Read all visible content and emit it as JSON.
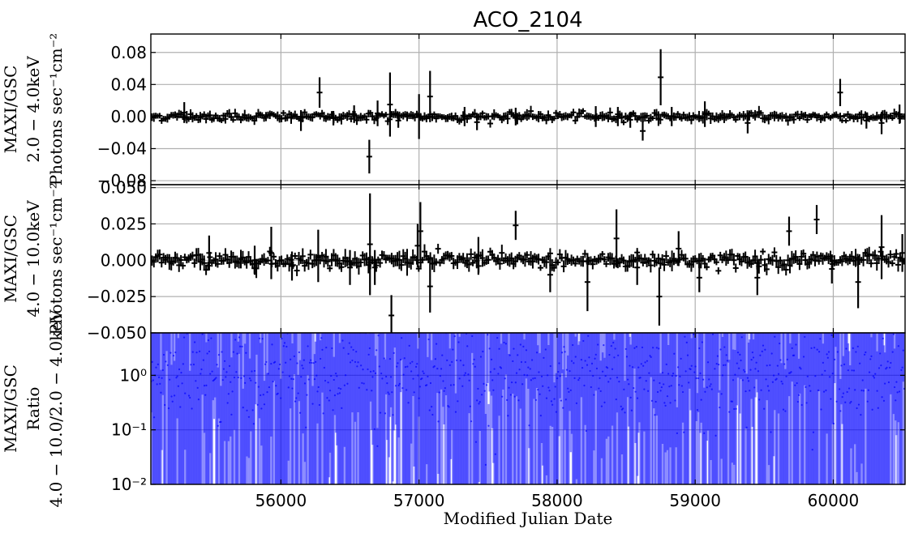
{
  "chart_data": [
    {
      "type": "scatter",
      "panel": "top",
      "title": "ACO_2104",
      "ylabel_lines": [
        "MAXI/GSC",
        "2.0 − 4.0keV",
        "Photons sec⁻¹cm⁻²"
      ],
      "xlim": [
        55058,
        60520
      ],
      "ylim": [
        -0.085,
        0.103
      ],
      "yticks": [
        0.08,
        0.04,
        0.0,
        -0.04,
        -0.08
      ],
      "ytick_labels": [
        "0.08",
        "0.04",
        "0.00",
        "−0.04",
        "−0.08"
      ],
      "grid": true,
      "color": "#000000",
      "spikes": [
        {
          "x": 55300,
          "y": 0.005,
          "err": 0.013
        },
        {
          "x": 56145,
          "y": -0.005,
          "err": 0.013
        },
        {
          "x": 56280,
          "y": 0.03,
          "err": 0.019
        },
        {
          "x": 56380,
          "y": -0.002,
          "err": 0.009
        },
        {
          "x": 56530,
          "y": 0.003,
          "err": 0.011
        },
        {
          "x": 56640,
          "y": -0.05,
          "err": 0.021
        },
        {
          "x": 56700,
          "y": 0.004,
          "err": 0.016
        },
        {
          "x": 56790,
          "y": 0.015,
          "err": 0.04
        },
        {
          "x": 56850,
          "y": -0.005,
          "err": 0.009
        },
        {
          "x": 57000,
          "y": 0.0,
          "err": 0.028
        },
        {
          "x": 57080,
          "y": 0.025,
          "err": 0.032
        },
        {
          "x": 57330,
          "y": 0.0,
          "err": 0.012
        },
        {
          "x": 57420,
          "y": -0.007,
          "err": 0.01
        },
        {
          "x": 57700,
          "y": 0.0,
          "err": 0.011
        },
        {
          "x": 58280,
          "y": 0.0,
          "err": 0.013
        },
        {
          "x": 58440,
          "y": 0.0,
          "err": 0.012
        },
        {
          "x": 58530,
          "y": -0.004,
          "err": 0.01
        },
        {
          "x": 58620,
          "y": -0.018,
          "err": 0.012
        },
        {
          "x": 58750,
          "y": 0.049,
          "err": 0.035
        },
        {
          "x": 58830,
          "y": 0.0,
          "err": 0.012
        },
        {
          "x": 59070,
          "y": 0.003,
          "err": 0.016
        },
        {
          "x": 59380,
          "y": -0.008,
          "err": 0.013
        },
        {
          "x": 60050,
          "y": 0.03,
          "err": 0.017
        },
        {
          "x": 60240,
          "y": -0.005,
          "err": 0.01
        },
        {
          "x": 60350,
          "y": -0.008,
          "err": 0.014
        },
        {
          "x": 60480,
          "y": 0.003,
          "err": 0.012
        }
      ],
      "noise": {
        "step": 14,
        "value_sd": 0.0025,
        "err_base": 0.003,
        "err_sd": 0.003
      }
    },
    {
      "type": "scatter",
      "panel": "middle",
      "ylabel_lines": [
        "MAXI/GSC",
        "4.0 − 10.0keV",
        "Photons sec⁻¹cm⁻²"
      ],
      "xlim": [
        55058,
        60520
      ],
      "ylim": [
        -0.05,
        0.052
      ],
      "yticks": [
        0.05,
        0.025,
        0.0,
        -0.025,
        -0.05
      ],
      "ytick_labels": [
        "0.050",
        "0.025",
        "0.000",
        "−0.025",
        "−0.050"
      ],
      "grid": true,
      "color": "#000000",
      "spikes": [
        {
          "x": 55480,
          "y": 0.005,
          "err": 0.012
        },
        {
          "x": 55810,
          "y": 0.0,
          "err": 0.01
        },
        {
          "x": 55930,
          "y": 0.005,
          "err": 0.018
        },
        {
          "x": 56080,
          "y": -0.004,
          "err": 0.01
        },
        {
          "x": 56270,
          "y": 0.003,
          "err": 0.018
        },
        {
          "x": 56500,
          "y": -0.005,
          "err": 0.012
        },
        {
          "x": 56645,
          "y": 0.011,
          "err": 0.035
        },
        {
          "x": 56680,
          "y": -0.005,
          "err": 0.012
        },
        {
          "x": 56800,
          "y": -0.038,
          "err": 0.014
        },
        {
          "x": 56990,
          "y": 0.01,
          "err": 0.015
        },
        {
          "x": 57010,
          "y": 0.02,
          "err": 0.02
        },
        {
          "x": 57080,
          "y": -0.018,
          "err": 0.018
        },
        {
          "x": 57430,
          "y": 0.003,
          "err": 0.013
        },
        {
          "x": 57700,
          "y": 0.024,
          "err": 0.01
        },
        {
          "x": 57950,
          "y": -0.01,
          "err": 0.012
        },
        {
          "x": 58220,
          "y": -0.015,
          "err": 0.02
        },
        {
          "x": 58430,
          "y": 0.015,
          "err": 0.02
        },
        {
          "x": 58580,
          "y": -0.005,
          "err": 0.012
        },
        {
          "x": 58740,
          "y": -0.025,
          "err": 0.02
        },
        {
          "x": 58880,
          "y": 0.008,
          "err": 0.012
        },
        {
          "x": 59030,
          "y": -0.012,
          "err": 0.01
        },
        {
          "x": 59450,
          "y": -0.012,
          "err": 0.012
        },
        {
          "x": 59680,
          "y": 0.02,
          "err": 0.01
        },
        {
          "x": 59880,
          "y": 0.028,
          "err": 0.01
        },
        {
          "x": 59990,
          "y": -0.006,
          "err": 0.01
        },
        {
          "x": 60180,
          "y": -0.015,
          "err": 0.018
        },
        {
          "x": 60350,
          "y": 0.009,
          "err": 0.022
        },
        {
          "x": 60500,
          "y": 0.005,
          "err": 0.013
        }
      ],
      "noise": {
        "step": 14,
        "value_sd": 0.0025,
        "err_base": 0.002,
        "err_sd": 0.003
      }
    },
    {
      "type": "scatter",
      "panel": "bottom",
      "ylabel_lines": [
        "MAXI/GSC",
        "Ratio",
        "4.0 − 10.0/2.0 − 4.0keV"
      ],
      "xlabel": "Modified Julian Date",
      "xlim": [
        55058,
        60520
      ],
      "ylim": [
        0.01,
        6
      ],
      "yscale": "log",
      "yticks": [
        1,
        0.1,
        0.01
      ],
      "ytick_labels": [
        "10⁰",
        "10⁻¹",
        "10⁻²"
      ],
      "xticks": [
        56000,
        57000,
        58000,
        59000,
        60000
      ],
      "xtick_labels": [
        "56000",
        "57000",
        "58000",
        "59000",
        "60000"
      ],
      "grid": true,
      "color": "#0000ff",
      "noise": {
        "step": 7,
        "center_log_mean": 0.05,
        "center_log_sd": 0.45
      }
    }
  ]
}
